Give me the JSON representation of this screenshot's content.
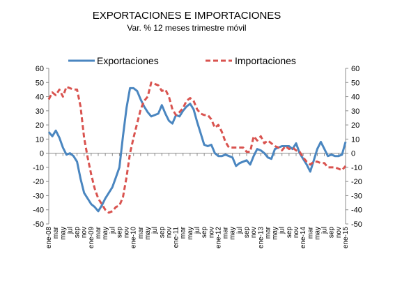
{
  "chart_data": {
    "type": "line",
    "title": "EXPORTACIONES E IMPORTACIONES",
    "subtitle": "Var. % 12 meses  trimestre móvil",
    "ylim": [
      -50,
      60
    ],
    "yticks": [
      -50,
      -40,
      -30,
      -20,
      -10,
      0,
      10,
      20,
      30,
      40,
      50,
      60
    ],
    "grid": false,
    "legend_position": "top",
    "x": [
      "ene-08",
      "feb-08",
      "mar-08",
      "abr-08",
      "may-08",
      "jun-08",
      "jul-08",
      "ago-08",
      "sep-08",
      "oct-08",
      "nov-08",
      "dic-08",
      "ene-09",
      "feb-09",
      "mar-09",
      "abr-09",
      "may-09",
      "jun-09",
      "jul-09",
      "ago-09",
      "sep-09",
      "oct-09",
      "nov-09",
      "dic-09",
      "ene-10",
      "feb-10",
      "mar-10",
      "abr-10",
      "may-10",
      "jun-10",
      "jul-10",
      "ago-10",
      "sep-10",
      "oct-10",
      "nov-10",
      "dic-10",
      "ene-11",
      "feb-11",
      "mar-11",
      "abr-11",
      "may-11",
      "jun-11",
      "jul-11",
      "ago-11",
      "sep-11",
      "oct-11",
      "nov-11",
      "dic-11",
      "ene-12",
      "feb-12",
      "mar-12",
      "abr-12",
      "may-12",
      "jun-12",
      "jul-12",
      "ago-12",
      "sep-12",
      "oct-12",
      "nov-12",
      "dic-12",
      "ene-13",
      "feb-13",
      "mar-13",
      "abr-13",
      "may-13",
      "jun-13",
      "jul-13",
      "ago-13",
      "sep-13",
      "oct-13",
      "nov-13",
      "dic-13",
      "ene-14",
      "feb-14",
      "mar-14",
      "abr-14",
      "may-14",
      "jun-14",
      "jul-14",
      "ago-14",
      "sep-14",
      "oct-14",
      "nov-14",
      "dic-14",
      "ene-15"
    ],
    "tick_labels": [
      {
        "i": 0,
        "label": "ene-08"
      },
      {
        "i": 2,
        "label": "mar"
      },
      {
        "i": 4,
        "label": "may"
      },
      {
        "i": 6,
        "label": "jul"
      },
      {
        "i": 8,
        "label": "sep"
      },
      {
        "i": 10,
        "label": "nov"
      },
      {
        "i": 12,
        "label": "ene-09"
      },
      {
        "i": 14,
        "label": "mar"
      },
      {
        "i": 16,
        "label": "may"
      },
      {
        "i": 18,
        "label": "jul"
      },
      {
        "i": 20,
        "label": "sep"
      },
      {
        "i": 22,
        "label": "nov"
      },
      {
        "i": 24,
        "label": "ene-10"
      },
      {
        "i": 26,
        "label": "mar"
      },
      {
        "i": 28,
        "label": "may"
      },
      {
        "i": 30,
        "label": "jul"
      },
      {
        "i": 32,
        "label": "sep"
      },
      {
        "i": 34,
        "label": "nov"
      },
      {
        "i": 36,
        "label": "ene-11"
      },
      {
        "i": 38,
        "label": "mar"
      },
      {
        "i": 40,
        "label": "may"
      },
      {
        "i": 42,
        "label": "jul"
      },
      {
        "i": 44,
        "label": "sep"
      },
      {
        "i": 46,
        "label": "nov"
      },
      {
        "i": 48,
        "label": "ene-12"
      },
      {
        "i": 50,
        "label": "mar"
      },
      {
        "i": 52,
        "label": "may"
      },
      {
        "i": 54,
        "label": "jul"
      },
      {
        "i": 56,
        "label": "sep"
      },
      {
        "i": 58,
        "label": "nov"
      },
      {
        "i": 60,
        "label": "ene-13"
      },
      {
        "i": 62,
        "label": "mar"
      },
      {
        "i": 64,
        "label": "may"
      },
      {
        "i": 66,
        "label": "jul"
      },
      {
        "i": 68,
        "label": "sep"
      },
      {
        "i": 70,
        "label": "nov"
      },
      {
        "i": 72,
        "label": "ene-14"
      },
      {
        "i": 74,
        "label": "mar"
      },
      {
        "i": 76,
        "label": "may"
      },
      {
        "i": 78,
        "label": "jul"
      },
      {
        "i": 80,
        "label": "sep"
      },
      {
        "i": 82,
        "label": "nov"
      },
      {
        "i": 84,
        "label": "ene-15"
      }
    ],
    "series": [
      {
        "name": "Exportaciones",
        "color": "#4a86c0",
        "style": "solid",
        "values": [
          15,
          12,
          16,
          11,
          4,
          -1,
          0,
          -2,
          -6,
          -18,
          -28,
          -32,
          -36,
          -38,
          -41,
          -37,
          -32,
          -28,
          -24,
          -17,
          -10,
          12,
          32,
          46,
          46,
          44,
          38,
          33,
          29,
          26,
          27,
          28,
          34,
          28,
          23,
          21,
          27,
          26,
          30,
          33,
          35,
          31,
          22,
          14,
          6,
          5,
          6,
          0,
          -2,
          -2,
          -1,
          -2,
          -3,
          -9,
          -7,
          -6,
          -5,
          -8,
          -2,
          3,
          2,
          0,
          -3,
          -4,
          3,
          4,
          5,
          5,
          5,
          3,
          7,
          0,
          -4,
          -8,
          -13,
          -5,
          3,
          8,
          3,
          -2,
          -1,
          -2,
          -2,
          -1,
          8
        ]
      },
      {
        "name": "Importaciones",
        "color": "#d9534f",
        "style": "dashed",
        "values": [
          38,
          43,
          41,
          45,
          40,
          47,
          46,
          45,
          45,
          33,
          11,
          -3,
          -15,
          -25,
          -32,
          -36,
          -40,
          -42,
          -41,
          -38,
          -37,
          -31,
          -17,
          0,
          11,
          21,
          31,
          37,
          40,
          50,
          49,
          48,
          44,
          45,
          40,
          31,
          27,
          29,
          32,
          37,
          39,
          37,
          31,
          28,
          27,
          27,
          24,
          18,
          20,
          15,
          8,
          4,
          4,
          4,
          4,
          4,
          1,
          1,
          12,
          9,
          12,
          7,
          9,
          7,
          5,
          4,
          2,
          5,
          3,
          4,
          2,
          1,
          -3,
          -6,
          -8,
          -6,
          -6,
          -7,
          -7,
          -10,
          -10,
          -10,
          -11,
          -12,
          -9
        ]
      }
    ]
  }
}
